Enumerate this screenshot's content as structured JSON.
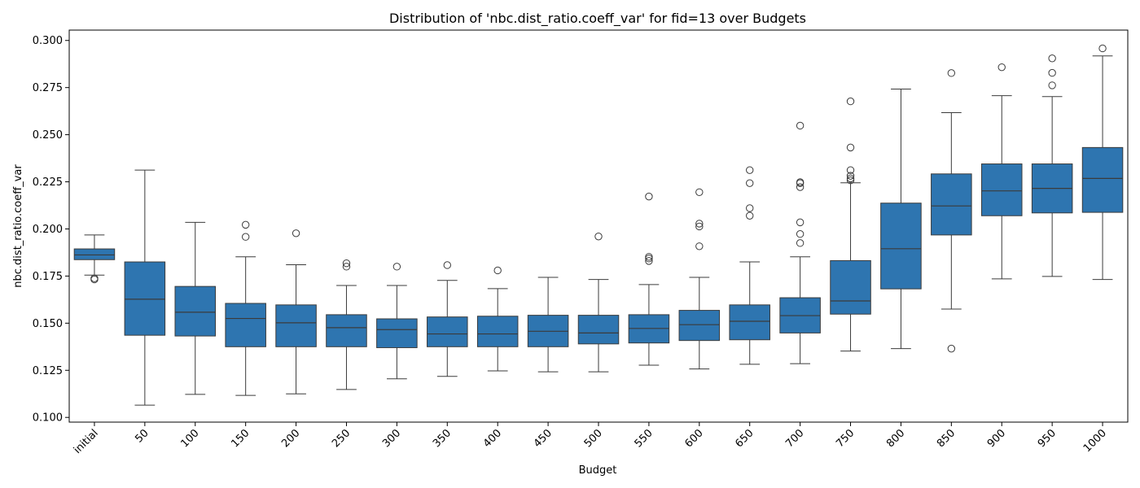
{
  "chart_data": {
    "type": "boxplot",
    "title": "Distribution of 'nbc.dist_ratio.coeff_var' for fid=13 over Budgets",
    "xlabel": "Budget",
    "ylabel": "nbc.dist_ratio.coeff_var",
    "ylim": [
      0.0975,
      0.3055
    ],
    "yticks": [
      "0.100",
      "0.125",
      "0.150",
      "0.175",
      "0.200",
      "0.225",
      "0.250",
      "0.275",
      "0.300"
    ],
    "yticks_values": [
      0.1,
      0.125,
      0.15,
      0.175,
      0.2,
      0.225,
      0.25,
      0.275,
      0.3
    ],
    "box_color": "#2e75b0",
    "grid": false,
    "categories": [
      "initial",
      "50",
      "100",
      "150",
      "200",
      "250",
      "300",
      "350",
      "400",
      "450",
      "500",
      "550",
      "600",
      "650",
      "700",
      "750",
      "800",
      "850",
      "900",
      "950",
      "1000"
    ],
    "boxes": [
      {
        "whislo": 0.1755,
        "q1": 0.1837,
        "med": 0.1862,
        "q3": 0.1894,
        "whishi": 0.1968,
        "fliers": [
          0.1732,
          0.1738
        ]
      },
      {
        "whislo": 0.1065,
        "q1": 0.1436,
        "med": 0.1627,
        "q3": 0.1825,
        "whishi": 0.2312,
        "fliers": []
      },
      {
        "whislo": 0.1122,
        "q1": 0.1432,
        "med": 0.1558,
        "q3": 0.1695,
        "whishi": 0.2035,
        "fliers": []
      },
      {
        "whislo": 0.1117,
        "q1": 0.1375,
        "med": 0.1525,
        "q3": 0.1605,
        "whishi": 0.1852,
        "fliers": [
          0.1958,
          0.2022
        ]
      },
      {
        "whislo": 0.1125,
        "q1": 0.1375,
        "med": 0.1502,
        "q3": 0.1597,
        "whishi": 0.181,
        "fliers": [
          0.1977
        ]
      },
      {
        "whislo": 0.1148,
        "q1": 0.1375,
        "med": 0.1476,
        "q3": 0.1545,
        "whishi": 0.17,
        "fliers": [
          0.18,
          0.1818
        ]
      },
      {
        "whislo": 0.1205,
        "q1": 0.137,
        "med": 0.1466,
        "q3": 0.1523,
        "whishi": 0.17,
        "fliers": [
          0.18
        ]
      },
      {
        "whislo": 0.1218,
        "q1": 0.1375,
        "med": 0.1443,
        "q3": 0.1533,
        "whishi": 0.1727,
        "fliers": [
          0.1808
        ]
      },
      {
        "whislo": 0.1247,
        "q1": 0.1375,
        "med": 0.1443,
        "q3": 0.1537,
        "whishi": 0.1683,
        "fliers": [
          0.178
        ]
      },
      {
        "whislo": 0.1242,
        "q1": 0.1375,
        "med": 0.1457,
        "q3": 0.1542,
        "whishi": 0.1743,
        "fliers": []
      },
      {
        "whislo": 0.1242,
        "q1": 0.139,
        "med": 0.1448,
        "q3": 0.1542,
        "whishi": 0.1732,
        "fliers": [
          0.196
        ]
      },
      {
        "whislo": 0.1277,
        "q1": 0.1395,
        "med": 0.1472,
        "q3": 0.1545,
        "whishi": 0.1705,
        "fliers": [
          0.183,
          0.1843,
          0.1852,
          0.2172
        ]
      },
      {
        "whislo": 0.1257,
        "q1": 0.1408,
        "med": 0.1492,
        "q3": 0.1568,
        "whishi": 0.1743,
        "fliers": [
          0.1908,
          0.2013,
          0.2028,
          0.2195
        ]
      },
      {
        "whislo": 0.1282,
        "q1": 0.1412,
        "med": 0.151,
        "q3": 0.1597,
        "whishi": 0.1825,
        "fliers": [
          0.207,
          0.211,
          0.2243,
          0.2312
        ]
      },
      {
        "whislo": 0.1285,
        "q1": 0.1448,
        "med": 0.154,
        "q3": 0.1635,
        "whishi": 0.1852,
        "fliers": [
          0.1925,
          0.1973,
          0.2035,
          0.2222,
          0.2243,
          0.2248,
          0.2548
        ]
      },
      {
        "whislo": 0.1352,
        "q1": 0.1548,
        "med": 0.1618,
        "q3": 0.1832,
        "whishi": 0.2245,
        "fliers": [
          0.2258,
          0.2268,
          0.2282,
          0.2312,
          0.2432,
          0.2677
        ]
      },
      {
        "whislo": 0.1365,
        "q1": 0.1682,
        "med": 0.1895,
        "q3": 0.2137,
        "whishi": 0.2742,
        "fliers": []
      },
      {
        "whislo": 0.1575,
        "q1": 0.1968,
        "med": 0.2122,
        "q3": 0.2292,
        "whishi": 0.2617,
        "fliers": [
          0.1365,
          0.2827
        ]
      },
      {
        "whislo": 0.1735,
        "q1": 0.207,
        "med": 0.2202,
        "q3": 0.2345,
        "whishi": 0.2707,
        "fliers": [
          0.2858
        ]
      },
      {
        "whislo": 0.1748,
        "q1": 0.2085,
        "med": 0.2215,
        "q3": 0.2345,
        "whishi": 0.2702,
        "fliers": [
          0.2762,
          0.2828,
          0.2905
        ]
      },
      {
        "whislo": 0.1732,
        "q1": 0.2088,
        "med": 0.2268,
        "q3": 0.2432,
        "whishi": 0.2918,
        "fliers": [
          0.2958
        ]
      }
    ]
  }
}
